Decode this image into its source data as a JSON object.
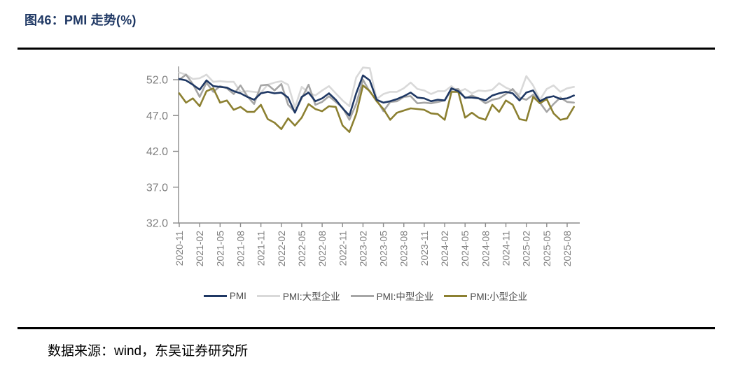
{
  "page": {
    "title": "图46：PMI 走势(%)",
    "source": "数据来源：wind，东吴证券研究所"
  },
  "chart_data": {
    "type": "line",
    "title": "PMI 走势(%)",
    "grid": false,
    "legend_position": "bottom",
    "ylim": [
      32,
      52
    ],
    "yticks": [
      52.0,
      47.0,
      42.0,
      37.0,
      32.0
    ],
    "y_tick_labels": [
      "52.0",
      "47.0",
      "42.0",
      "37.0",
      "32.0"
    ],
    "x_tick_labels": [
      "2020-11",
      "2021-02",
      "2021-05",
      "2021-08",
      "2021-11",
      "2022-02",
      "2022-05",
      "2022-08",
      "2022-11",
      "2023-02",
      "2023-05",
      "2023-08",
      "2023-11",
      "2024-02",
      "2024-05",
      "2024-08",
      "2024-11",
      "2025-02",
      "2025-05",
      "2025-08"
    ],
    "x": [
      "2020-11",
      "2020-12",
      "2021-01",
      "2021-02",
      "2021-03",
      "2021-04",
      "2021-05",
      "2021-06",
      "2021-07",
      "2021-08",
      "2021-09",
      "2021-10",
      "2021-11",
      "2021-12",
      "2022-01",
      "2022-02",
      "2022-03",
      "2022-04",
      "2022-05",
      "2022-06",
      "2022-07",
      "2022-08",
      "2022-09",
      "2022-10",
      "2022-11",
      "2022-12",
      "2023-01",
      "2023-02",
      "2023-03",
      "2023-04",
      "2023-05",
      "2023-06",
      "2023-07",
      "2023-08",
      "2023-09",
      "2023-10",
      "2023-11",
      "2023-12",
      "2024-01",
      "2024-02",
      "2024-03",
      "2024-04",
      "2024-05",
      "2024-06",
      "2024-07",
      "2024-08",
      "2024-09",
      "2024-10",
      "2024-11",
      "2024-12",
      "2025-01",
      "2025-02",
      "2025-03",
      "2025-04",
      "2025-05",
      "2025-06",
      "2025-07",
      "2025-08",
      "2025-09"
    ],
    "series": [
      {
        "name": "PMI",
        "color": "#1F3864",
        "values": [
          52.1,
          51.9,
          51.3,
          50.6,
          51.9,
          51.1,
          51.0,
          50.9,
          50.4,
          50.1,
          49.6,
          49.2,
          50.1,
          50.3,
          50.1,
          50.2,
          49.5,
          47.4,
          49.6,
          50.2,
          49.0,
          49.4,
          50.1,
          49.2,
          48.0,
          47.0,
          50.1,
          52.6,
          51.9,
          49.2,
          48.8,
          49.0,
          49.3,
          49.7,
          50.2,
          49.5,
          49.4,
          49.0,
          49.2,
          49.1,
          50.8,
          50.4,
          49.5,
          49.5,
          49.4,
          49.1,
          49.8,
          50.1,
          50.3,
          50.1,
          49.1,
          50.2,
          50.5,
          49.0,
          49.5,
          49.7,
          49.3,
          49.4,
          49.8
        ]
      },
      {
        "name": "PMI:大型企业",
        "color": "#D9D9D9",
        "values": [
          53.0,
          52.7,
          52.1,
          52.2,
          52.7,
          51.7,
          51.8,
          51.7,
          51.7,
          50.3,
          50.4,
          50.3,
          50.2,
          51.3,
          51.6,
          51.8,
          51.3,
          48.1,
          51.0,
          50.2,
          49.8,
          50.5,
          51.1,
          50.1,
          49.1,
          48.3,
          52.3,
          53.7,
          53.6,
          49.3,
          50.0,
          50.3,
          50.3,
          50.8,
          51.6,
          50.7,
          50.5,
          50.0,
          50.4,
          50.4,
          51.1,
          50.3,
          50.7,
          50.1,
          50.5,
          50.4,
          50.6,
          51.5,
          50.9,
          50.5,
          49.9,
          52.5,
          51.2,
          49.2,
          50.7,
          51.2,
          50.3,
          50.8,
          51.0
        ]
      },
      {
        "name": "PMI:中型企业",
        "color": "#A6A6A6",
        "values": [
          52.0,
          52.7,
          51.4,
          49.6,
          51.6,
          50.3,
          51.1,
          50.8,
          50.0,
          51.2,
          49.7,
          48.6,
          51.2,
          51.3,
          50.5,
          51.4,
          48.5,
          47.5,
          49.4,
          51.3,
          48.5,
          48.9,
          49.7,
          48.9,
          48.1,
          46.4,
          48.6,
          52.0,
          50.3,
          49.2,
          47.6,
          48.9,
          49.0,
          49.6,
          49.7,
          48.7,
          48.8,
          48.7,
          48.9,
          49.1,
          50.6,
          50.7,
          49.4,
          49.8,
          49.4,
          48.7,
          49.2,
          49.4,
          50.0,
          50.7,
          49.5,
          49.2,
          49.9,
          48.8,
          47.5,
          48.6,
          49.5,
          48.9,
          48.8
        ]
      },
      {
        "name": "PMI:小型企业",
        "color": "#8C8031",
        "values": [
          50.1,
          48.8,
          49.4,
          48.3,
          50.4,
          50.8,
          48.8,
          49.1,
          47.8,
          48.2,
          47.5,
          47.5,
          48.5,
          46.5,
          46.0,
          45.1,
          46.6,
          45.6,
          46.7,
          48.6,
          47.9,
          47.6,
          48.3,
          48.2,
          45.6,
          44.7,
          47.2,
          51.2,
          50.4,
          49.0,
          47.9,
          46.4,
          47.4,
          47.7,
          48.0,
          47.9,
          47.8,
          47.3,
          47.2,
          46.4,
          50.3,
          50.3,
          46.7,
          47.4,
          46.7,
          46.4,
          48.5,
          47.5,
          49.1,
          48.5,
          46.5,
          46.3,
          49.6,
          48.7,
          49.3,
          47.3,
          46.4,
          46.6,
          48.2
        ]
      }
    ]
  }
}
